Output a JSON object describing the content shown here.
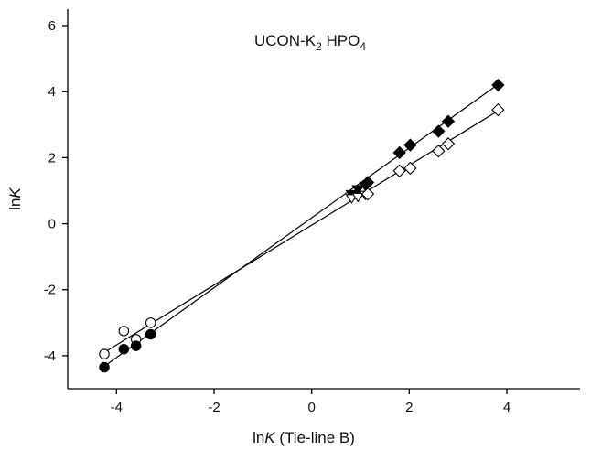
{
  "chart_data": {
    "type": "scatter",
    "title": {
      "parts": [
        {
          "text": "UCON-K",
          "sub": false
        },
        {
          "text": "2",
          "sub": true
        },
        {
          "text": " HPO",
          "sub": false
        },
        {
          "text": "4",
          "sub": true
        }
      ]
    },
    "xlabel": {
      "prefix": "ln",
      "italic": "K",
      "suffix": " (Tie-line B)"
    },
    "ylabel": {
      "prefix": "ln",
      "italic": "K"
    },
    "xlim": [
      -5,
      5.5
    ],
    "ylim": [
      -5,
      6.5
    ],
    "x_ticks": [
      -4,
      -2,
      0,
      2,
      4
    ],
    "x_tick_labels": [
      "-4",
      "-2",
      "0",
      "2",
      "4"
    ],
    "y_ticks": [
      -4,
      -2,
      0,
      2,
      4,
      6
    ],
    "y_tick_labels": [
      "-4",
      "-2",
      "0",
      "2",
      "4",
      "6"
    ],
    "grid": false,
    "colors": {
      "axis": "#000000",
      "marker": "#000000",
      "line": "#000000"
    },
    "series": [
      {
        "marker": "circle-open",
        "points": [
          [
            -4.25,
            -3.95
          ],
          [
            -3.85,
            -3.25
          ],
          [
            -3.6,
            -3.5
          ],
          [
            -3.3,
            -3.0
          ]
        ]
      },
      {
        "marker": "circle-filled",
        "points": [
          [
            -4.25,
            -4.35
          ],
          [
            -3.85,
            -3.8
          ],
          [
            -3.6,
            -3.7
          ],
          [
            -3.3,
            -3.35
          ]
        ]
      },
      {
        "marker": "triangle-down-filled",
        "points": [
          [
            0.82,
            0.9
          ],
          [
            0.95,
            1.05
          ],
          [
            1.1,
            1.15
          ]
        ]
      },
      {
        "marker": "triangle-down-open",
        "points": [
          [
            0.82,
            0.78
          ],
          [
            0.95,
            0.82
          ],
          [
            1.1,
            0.88
          ]
        ]
      },
      {
        "marker": "diamond-filled",
        "points": [
          [
            1.15,
            1.25
          ],
          [
            1.8,
            2.15
          ],
          [
            2.02,
            2.38
          ],
          [
            2.6,
            2.8
          ],
          [
            2.8,
            3.1
          ],
          [
            3.82,
            4.2
          ]
        ]
      },
      {
        "marker": "diamond-open",
        "points": [
          [
            1.15,
            0.9
          ],
          [
            1.8,
            1.6
          ],
          [
            2.02,
            1.68
          ],
          [
            2.6,
            2.2
          ],
          [
            2.8,
            2.42
          ],
          [
            3.82,
            3.45
          ]
        ]
      }
    ],
    "fit_lines": [
      {
        "style": "filled",
        "from": [
          -4.25,
          -4.32
        ],
        "to": [
          3.82,
          4.22
        ]
      },
      {
        "style": "open",
        "from": [
          -4.25,
          -3.9
        ],
        "to": [
          3.82,
          3.42
        ]
      }
    ]
  }
}
